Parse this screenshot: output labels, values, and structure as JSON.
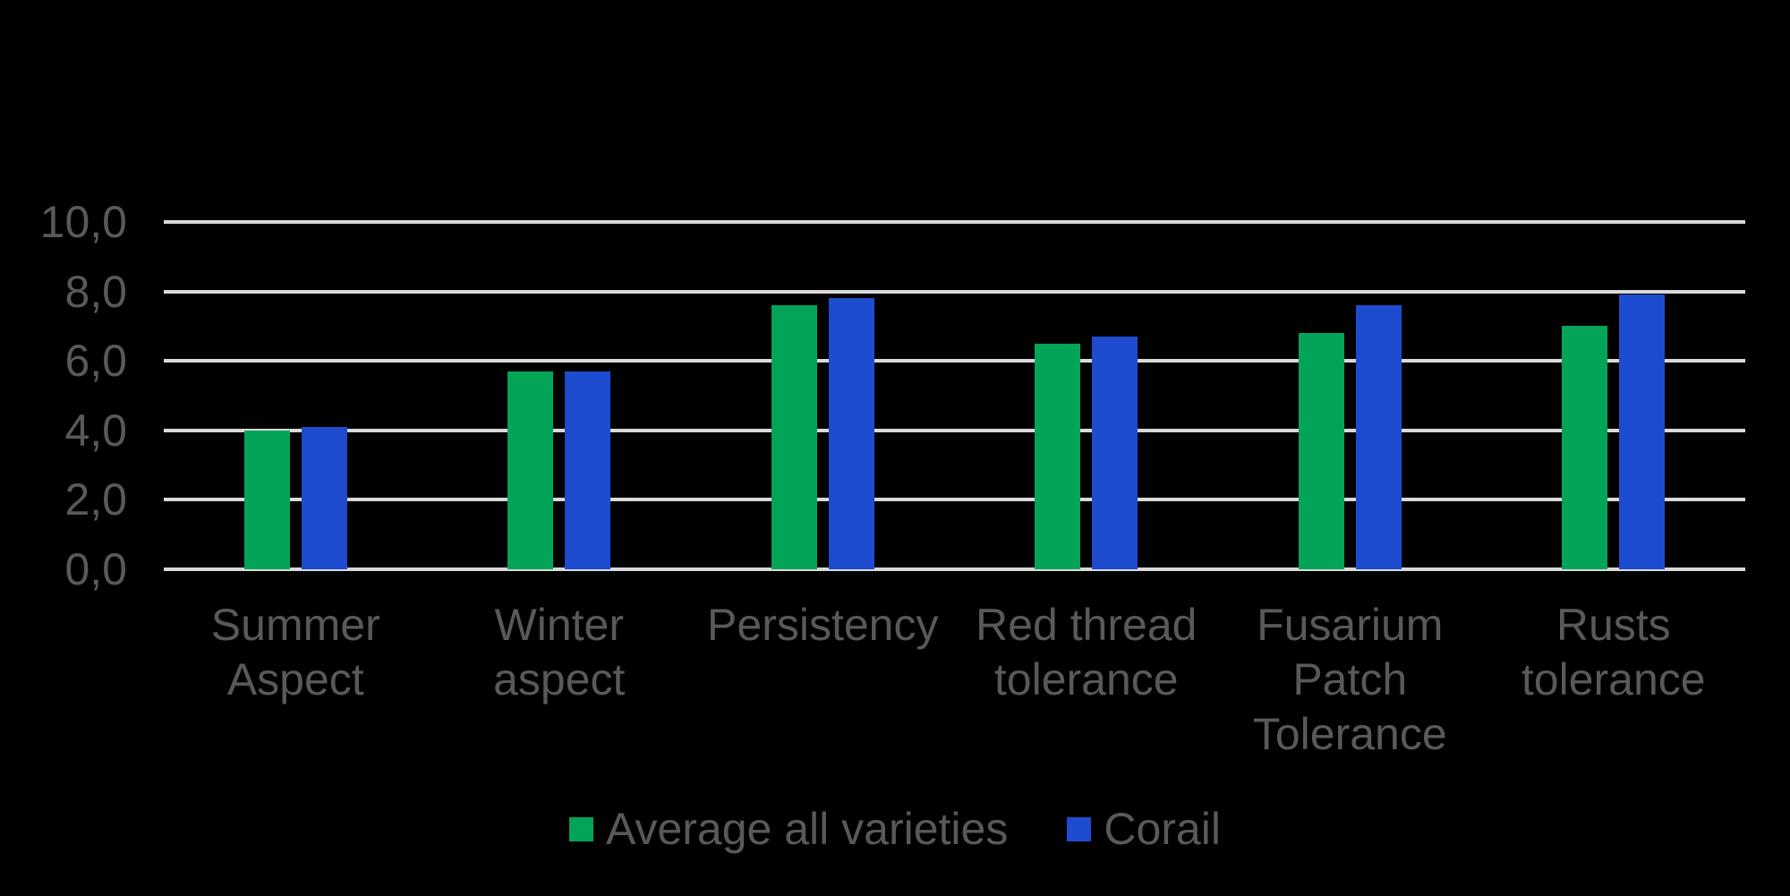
{
  "background_color": "#000000",
  "chart_data": {
    "type": "bar",
    "title": "",
    "xlabel": "",
    "ylabel": "",
    "categories": [
      "Summer\nAspect",
      "Winter\naspect",
      "Persistency",
      "Red thread\ntolerance",
      "Fusarium\nPatch\nTolerance",
      "Rusts\ntolerance"
    ],
    "series": [
      {
        "name": "Average all varieties",
        "color": "#04A458",
        "values": [
          4.0,
          5.7,
          7.6,
          6.5,
          6.8,
          7.0
        ]
      },
      {
        "name": "Corail",
        "color": "#1D4CD0",
        "values": [
          4.1,
          5.7,
          7.8,
          6.7,
          7.6,
          7.9
        ]
      }
    ],
    "ylim": [
      0,
      10
    ],
    "ytick_values": [
      0,
      2,
      4,
      6,
      8,
      10
    ],
    "yticks": [
      "0,0",
      "2,0",
      "4,0",
      "6,0",
      "8,0",
      "10,0"
    ],
    "grid": true,
    "gridline_color": "#D9D9D9",
    "axis_label_color": "#595959",
    "legend_position": "bottom"
  }
}
